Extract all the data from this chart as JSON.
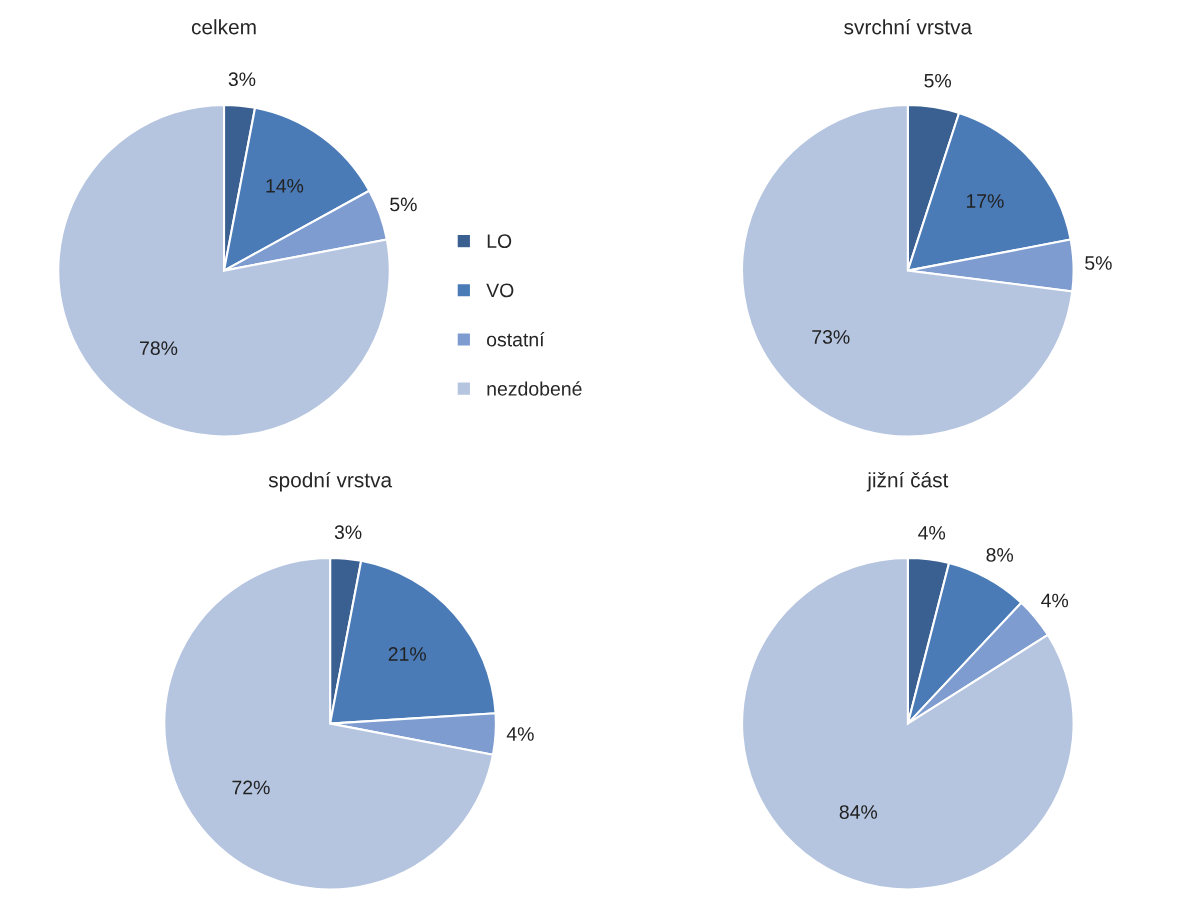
{
  "chart_data": [
    {
      "type": "pie",
      "title": "celkem",
      "categories": [
        "LO",
        "VO",
        "ostatní",
        "nezdobené"
      ],
      "values": [
        3,
        14,
        5,
        78
      ],
      "value_labels": [
        "3%",
        "14%",
        "5%",
        "78%"
      ],
      "colors": [
        "#3a5f91",
        "#4a7bb7",
        "#7e9ccf",
        "#b5c4df"
      ],
      "legend": "right"
    },
    {
      "type": "pie",
      "title": "svrchní vrstva",
      "categories": [
        null,
        null,
        null,
        null
      ],
      "values": [
        5,
        17,
        5,
        73
      ],
      "value_labels": [
        "5%",
        "17%",
        "5%",
        "73%"
      ],
      "colors": [
        "#3a5f91",
        "#4a7bb7",
        "#7e9ccf",
        "#b5c4df"
      ]
    },
    {
      "type": "pie",
      "title": "spodní vrstva",
      "categories": [
        null,
        null,
        null,
        null
      ],
      "values": [
        3,
        21,
        4,
        72
      ],
      "value_labels": [
        "3%",
        "21%",
        "4%",
        "72%"
      ],
      "colors": [
        "#3a5f91",
        "#4a7bb7",
        "#7e9ccf",
        "#b5c4df"
      ]
    },
    {
      "type": "pie",
      "title": "jižní část",
      "categories": [
        null,
        null,
        null,
        null
      ],
      "values": [
        4,
        8,
        4,
        84
      ],
      "value_labels": [
        "4%",
        "8%",
        "4%",
        "84%"
      ],
      "colors": [
        "#3a5f91",
        "#4a7bb7",
        "#7e9ccf",
        "#b5c4df"
      ]
    }
  ]
}
